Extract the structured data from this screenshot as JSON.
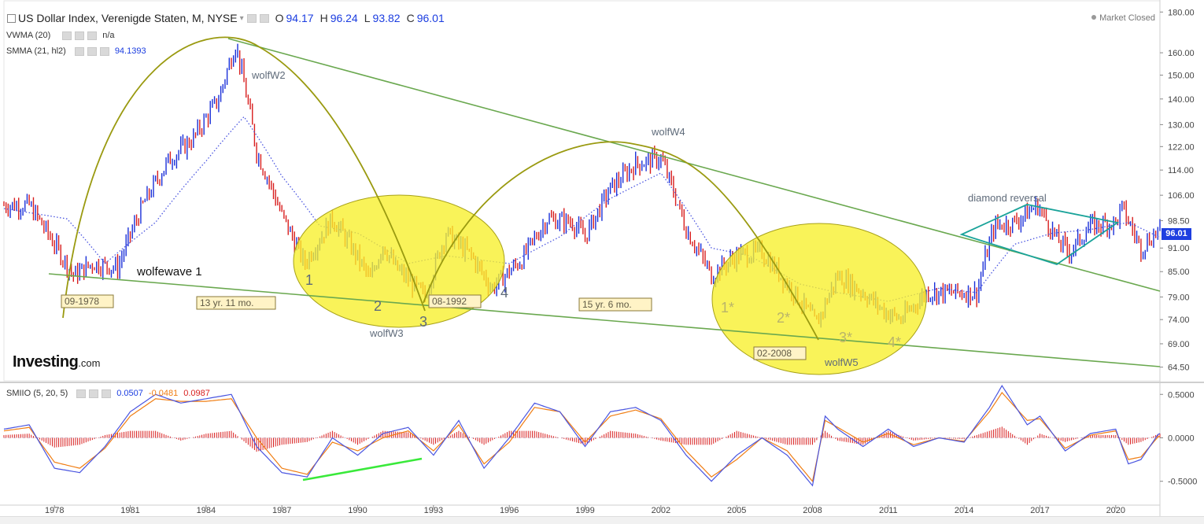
{
  "header": {
    "title": "US Dollar Index, Verenigde Staten, M, NYSE",
    "ohlc": [
      {
        "k": "O",
        "v": "94.17"
      },
      {
        "k": "H",
        "v": "96.24"
      },
      {
        "k": "L",
        "v": "93.82"
      },
      {
        "k": "C",
        "v": "96.01"
      }
    ],
    "market_status": "Market Closed"
  },
  "indicators": {
    "vwma": {
      "label": "VWMA (20)",
      "value": "n/a"
    },
    "smma": {
      "label": "SMMA (21, hl2)",
      "value": "94.1393"
    },
    "smiio": {
      "label": "SMIIO (5, 20, 5)",
      "v1": "0.0507",
      "v2": "-0.0481",
      "v3": "0.0987"
    }
  },
  "logo": {
    "main": "Investing",
    "suffix": ".com"
  },
  "last_price": "96.01",
  "colors": {
    "up_bar": "#1a2fd8",
    "down_bar": "#d81e1e",
    "smma": "#4a55e0",
    "wedge_line": "#6aa84f",
    "arc": "#9a9a10",
    "ellipse_fill": "#f7ef2a",
    "diamond": "#1aa39a",
    "osc_line_1": "#4a55e0",
    "osc_line_2": "#f07d12",
    "osc_hist": "#d81e1e",
    "divergence": "#39e93a"
  },
  "annotations": {
    "wolfewave1": "wolfewave 1",
    "wolfW2": "wolfW2",
    "wolfW3": "wolfW3",
    "wolfW4": "wolfW4",
    "wolfW5": "wolfW5",
    "diamond": "diamond reversal",
    "box_1978": "09-1978",
    "box_13y": "13 yr. 11 mo.",
    "box_1992": "08-1992",
    "box_15y": "15 yr. 6 mo.",
    "box_2008": "02-2008",
    "n1": "1",
    "n2": "2",
    "n3": "3",
    "n4": "4",
    "s1": "1*",
    "s2": "2*",
    "s3": "3*",
    "s4": "4*"
  },
  "chart_data": [
    {
      "type": "line",
      "title": "US Dollar Index, Verenigde Staten, M, NYSE",
      "xlabel": "",
      "ylabel": "",
      "y_scale": "log",
      "ylim": [
        62,
        183
      ],
      "y_ticks": [
        "180.00",
        "160.00",
        "150.00",
        "140.00",
        "130.00",
        "122.00",
        "114.00",
        "106.00",
        "98.50",
        "91.00",
        "85.00",
        "79.00",
        "74.00",
        "69.00",
        "64.50"
      ],
      "x_ticks": [
        "1978",
        "1981",
        "1984",
        "1987",
        "1990",
        "1993",
        "1996",
        "1999",
        "2002",
        "2005",
        "2008",
        "2011",
        "2014",
        "2017",
        "2020"
      ],
      "series": [
        {
          "name": "US Dollar Index",
          "x": [
            1976.0,
            1977.0,
            1978.0,
            1978.75,
            1979.5,
            1980.5,
            1981.5,
            1982.5,
            1983.5,
            1984.5,
            1985.17,
            1986.0,
            1987.0,
            1987.9,
            1989.0,
            1989.5,
            1990.5,
            1991.0,
            1991.5,
            1992.67,
            1993.5,
            1994.5,
            1995.3,
            1996.5,
            1997.5,
            1998.5,
            1999.0,
            2000.0,
            2001.0,
            2001.5,
            2002.0,
            2003.0,
            2004.0,
            2005.0,
            2006.0,
            2007.0,
            2008.17,
            2009.0,
            2010.0,
            2010.8,
            2011.5,
            2012.5,
            2013.5,
            2014.5,
            2015.2,
            2016.0,
            2016.9,
            2017.7,
            2018.2,
            2019.0,
            2020.0,
            2020.25,
            2021.0,
            2021.7
          ],
          "y": [
            103,
            103,
            92,
            84,
            87,
            86,
            103,
            117,
            125,
            140,
            164,
            120,
            100,
            87,
            99,
            94,
            83,
            92,
            86,
            79,
            95,
            89,
            81,
            88,
            99,
            98,
            94,
            108,
            116,
            117,
            118,
            96,
            84,
            89,
            90,
            82,
            73,
            84,
            80,
            76,
            74,
            80,
            80,
            80,
            97,
            98,
            103,
            93,
            90,
            97,
            98,
            102,
            91,
            96
          ]
        },
        {
          "name": "SMMA (21, hl2)",
          "x": [
            1976.0,
            1978.5,
            1980.0,
            1982.0,
            1984.0,
            1985.5,
            1987.0,
            1988.5,
            1990.0,
            1992.0,
            1993.5,
            1996.0,
            1998.0,
            2000.0,
            2002.0,
            2004.0,
            2005.5,
            2007.5,
            2009.0,
            2011.0,
            2013.0,
            2014.5,
            2016.0,
            2017.5,
            2019.0,
            2020.5,
            2021.7
          ],
          "y": [
            102,
            99,
            87,
            98,
            117,
            133,
            112,
            97,
            95,
            87,
            89,
            87,
            94,
            105,
            113,
            91,
            89,
            82,
            80,
            78,
            81,
            80,
            92,
            95,
            96,
            98,
            94
          ]
        }
      ]
    },
    {
      "type": "line",
      "title": "SMIIO (5, 20, 5)",
      "xlabel": "",
      "ylabel": "",
      "ylim": [
        -0.72,
        0.62
      ],
      "y_ticks": [
        "0.5000",
        "0.0000",
        "-0.5000"
      ],
      "series": [
        {
          "name": "SMIIO",
          "x": [
            1976.0,
            1977.0,
            1978.0,
            1979.0,
            1980.0,
            1981.0,
            1982.0,
            1983.0,
            1984.0,
            1985.0,
            1986.0,
            1987.0,
            1988.0,
            1989.0,
            1990.0,
            1991.0,
            1992.0,
            1993.0,
            1994.0,
            1995.0,
            1996.0,
            1997.0,
            1998.0,
            1999.0,
            2000.0,
            2001.0,
            2002.0,
            2003.0,
            2004.0,
            2005.0,
            2006.0,
            2007.0,
            2008.0,
            2008.5,
            2009.0,
            2010.0,
            2011.0,
            2012.0,
            2013.0,
            2014.0,
            2015.0,
            2015.5,
            2016.5,
            2017.0,
            2018.0,
            2019.0,
            2020.0,
            2020.5,
            2021.0,
            2021.7
          ],
          "y": [
            0.1,
            0.15,
            -0.35,
            -0.4,
            -0.1,
            0.3,
            0.5,
            0.4,
            0.45,
            0.5,
            -0.1,
            -0.4,
            -0.45,
            0.0,
            -0.2,
            0.05,
            0.12,
            -0.2,
            0.2,
            -0.35,
            0.0,
            0.4,
            0.3,
            -0.1,
            0.3,
            0.35,
            0.2,
            -0.2,
            -0.5,
            -0.2,
            0.0,
            -0.2,
            -0.55,
            0.25,
            0.1,
            -0.1,
            0.1,
            -0.1,
            0.0,
            -0.05,
            0.35,
            0.6,
            0.15,
            0.25,
            -0.15,
            0.05,
            0.1,
            -0.3,
            -0.25,
            0.05
          ]
        },
        {
          "name": "Signal",
          "x": [
            1976.0,
            1977.0,
            1978.0,
            1979.0,
            1980.0,
            1981.0,
            1982.0,
            1983.0,
            1984.0,
            1985.0,
            1986.0,
            1987.0,
            1988.0,
            1989.0,
            1990.0,
            1991.0,
            1992.0,
            1993.0,
            1994.0,
            1995.0,
            1996.0,
            1997.0,
            1998.0,
            1999.0,
            2000.0,
            2001.0,
            2002.0,
            2003.0,
            2004.0,
            2005.0,
            2006.0,
            2007.0,
            2008.0,
            2008.5,
            2009.0,
            2010.0,
            2011.0,
            2012.0,
            2013.0,
            2014.0,
            2015.0,
            2015.5,
            2016.5,
            2017.0,
            2018.0,
            2019.0,
            2020.0,
            2020.5,
            2021.0,
            2021.7
          ],
          "y": [
            0.08,
            0.12,
            -0.28,
            -0.35,
            -0.12,
            0.25,
            0.45,
            0.42,
            0.42,
            0.45,
            0.0,
            -0.35,
            -0.42,
            -0.05,
            -0.15,
            0.0,
            0.08,
            -0.15,
            0.15,
            -0.3,
            -0.05,
            0.35,
            0.3,
            -0.05,
            0.25,
            0.32,
            0.22,
            -0.15,
            -0.45,
            -0.25,
            0.0,
            -0.15,
            -0.5,
            0.2,
            0.12,
            -0.05,
            0.05,
            -0.08,
            0.0,
            -0.04,
            0.3,
            0.52,
            0.2,
            0.22,
            -0.12,
            0.03,
            0.08,
            -0.25,
            -0.22,
            0.02
          ]
        }
      ]
    }
  ]
}
